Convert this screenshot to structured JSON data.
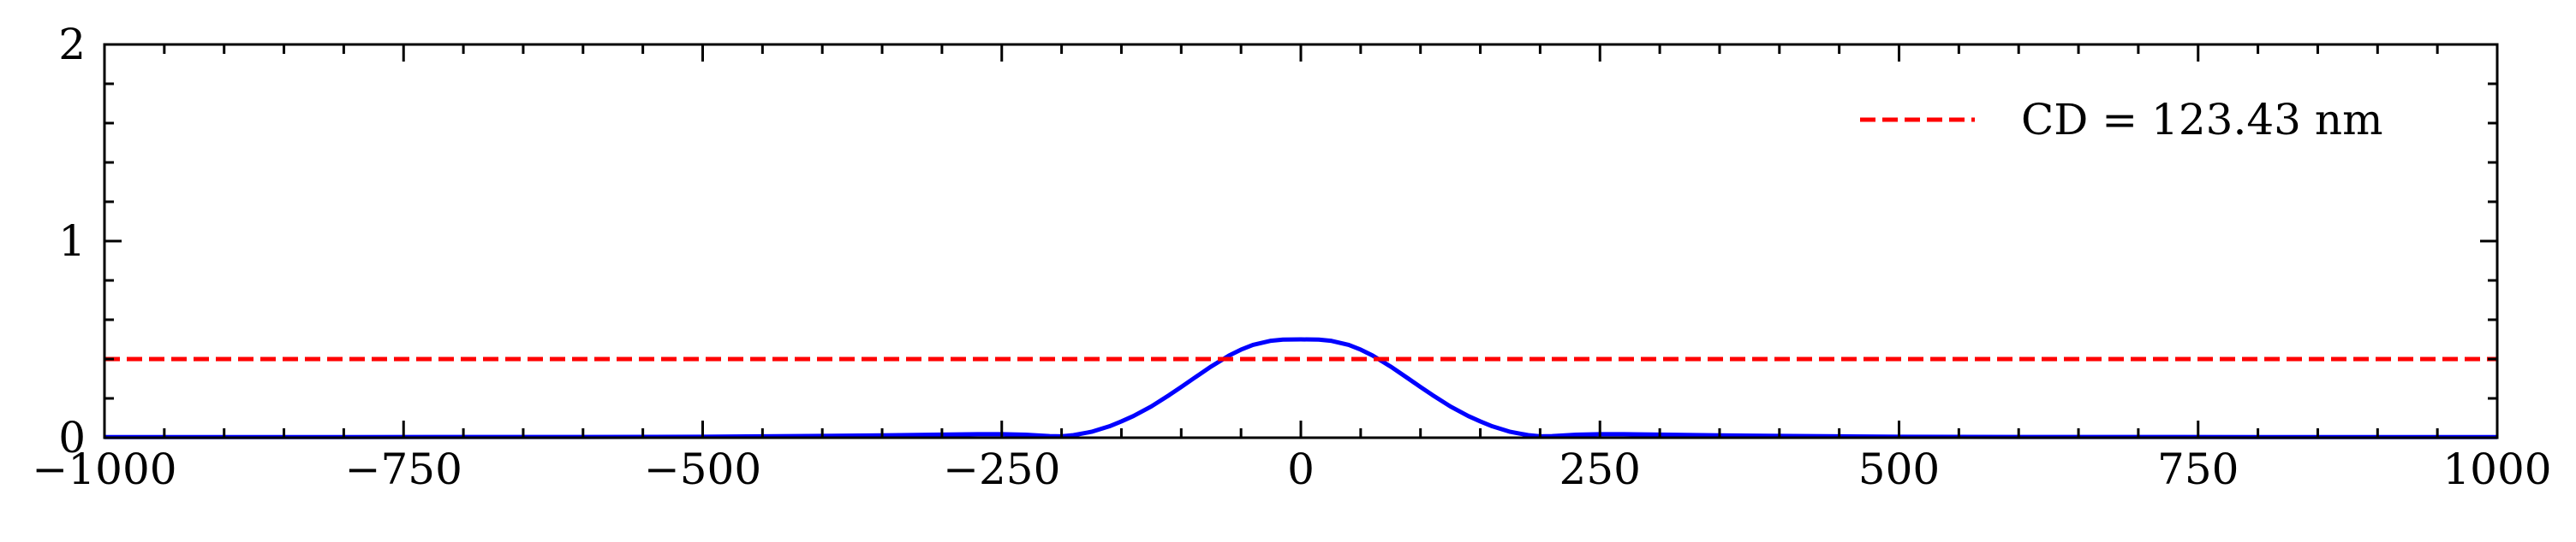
{
  "chart_data": {
    "type": "line",
    "xlim": [
      -1000,
      1000
    ],
    "ylim": [
      0,
      2
    ],
    "x_ticks": [
      -1000,
      -750,
      -500,
      -250,
      0,
      250,
      500,
      750,
      1000
    ],
    "x_tick_labels": [
      "−1000",
      "−750",
      "−500",
      "−250",
      "0",
      "250",
      "500",
      "750",
      "1000"
    ],
    "y_ticks": [
      0,
      1,
      2
    ],
    "y_tick_labels": [
      "0",
      "1",
      "2"
    ],
    "grid": false,
    "legend_position": "top-right",
    "legend": [
      {
        "label": "CD = 123.43 nm",
        "style": "dashed",
        "color": "#ff0000"
      }
    ],
    "series": [
      {
        "style": "solid",
        "color": "#0000ff",
        "x": [
          -1000,
          -900,
          -800,
          -700,
          -600,
          -500,
          -450,
          -400,
          -350,
          -300,
          -270,
          -250,
          -230,
          -210,
          -200,
          -190,
          -175,
          -160,
          -150,
          -140,
          -125,
          -110,
          -100,
          -90,
          -75,
          -60,
          -50,
          -40,
          -25,
          -15,
          0,
          15,
          25,
          40,
          50,
          60,
          75,
          90,
          100,
          110,
          125,
          140,
          150,
          160,
          175,
          190,
          200,
          210,
          230,
          250,
          270,
          300,
          350,
          400,
          450,
          500,
          600,
          700,
          800,
          900,
          1000
        ],
        "y": [
          0.003,
          0.003,
          0.003,
          0.004,
          0.004,
          0.005,
          0.007,
          0.009,
          0.012,
          0.016,
          0.018,
          0.018,
          0.015,
          0.008,
          0.007,
          0.013,
          0.03,
          0.058,
          0.083,
          0.11,
          0.159,
          0.217,
          0.258,
          0.3,
          0.362,
          0.418,
          0.448,
          0.472,
          0.493,
          0.499,
          0.5,
          0.499,
          0.493,
          0.472,
          0.448,
          0.418,
          0.362,
          0.3,
          0.258,
          0.217,
          0.159,
          0.11,
          0.083,
          0.058,
          0.03,
          0.013,
          0.007,
          0.008,
          0.015,
          0.018,
          0.018,
          0.016,
          0.012,
          0.009,
          0.007,
          0.005,
          0.004,
          0.004,
          0.003,
          0.003,
          0.003
        ]
      },
      {
        "style": "dashed",
        "color": "#ff0000",
        "x": [
          -1000,
          1000
        ],
        "y": [
          0.4,
          0.4
        ]
      }
    ]
  }
}
